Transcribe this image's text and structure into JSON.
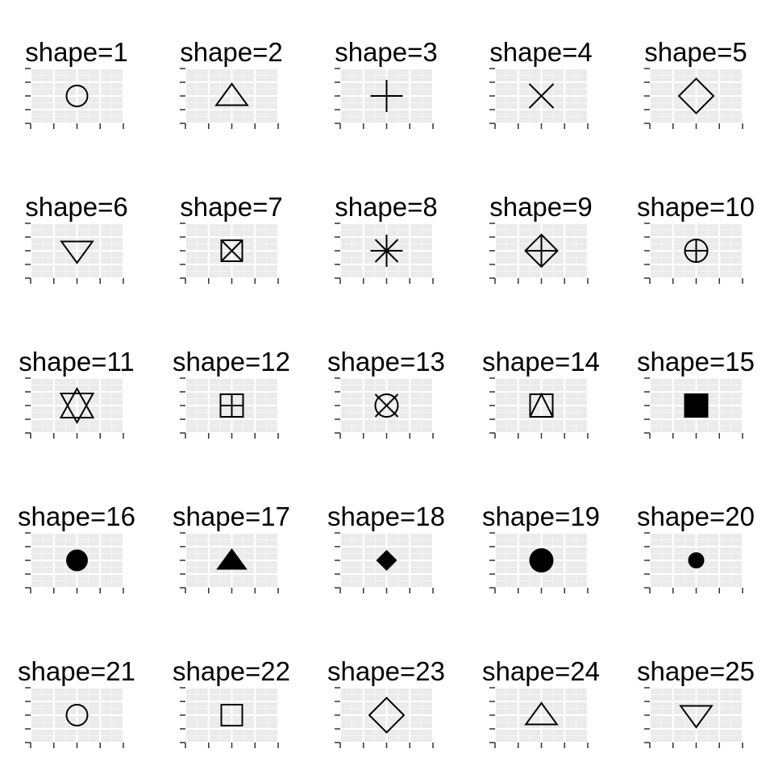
{
  "chart_data": {
    "type": "scatter",
    "layout": "facet-grid",
    "rows": 5,
    "cols": 5,
    "colors": {
      "background": "#ffffff",
      "panel": "#ebebeb",
      "grid_major": "#ffffff",
      "grid_minor": "#f5f5f5",
      "point": "#000000",
      "tick": "#333333"
    },
    "panels": [
      {
        "title": "shape=1",
        "shape": 1,
        "x": 0,
        "y": 0
      },
      {
        "title": "shape=2",
        "shape": 2,
        "x": 0,
        "y": 0
      },
      {
        "title": "shape=3",
        "shape": 3,
        "x": 0,
        "y": 0
      },
      {
        "title": "shape=4",
        "shape": 4,
        "x": 0,
        "y": 0
      },
      {
        "title": "shape=5",
        "shape": 5,
        "x": 0,
        "y": 0
      },
      {
        "title": "shape=6",
        "shape": 6,
        "x": 0,
        "y": 0
      },
      {
        "title": "shape=7",
        "shape": 7,
        "x": 0,
        "y": 0
      },
      {
        "title": "shape=8",
        "shape": 8,
        "x": 0,
        "y": 0
      },
      {
        "title": "shape=9",
        "shape": 9,
        "x": 0,
        "y": 0
      },
      {
        "title": "shape=10",
        "shape": 10,
        "x": 0,
        "y": 0
      },
      {
        "title": "shape=11",
        "shape": 11,
        "x": 0,
        "y": 0
      },
      {
        "title": "shape=12",
        "shape": 12,
        "x": 0,
        "y": 0
      },
      {
        "title": "shape=13",
        "shape": 13,
        "x": 0,
        "y": 0
      },
      {
        "title": "shape=14",
        "shape": 14,
        "x": 0,
        "y": 0
      },
      {
        "title": "shape=15",
        "shape": 15,
        "x": 0,
        "y": 0
      },
      {
        "title": "shape=16",
        "shape": 16,
        "x": 0,
        "y": 0
      },
      {
        "title": "shape=17",
        "shape": 17,
        "x": 0,
        "y": 0
      },
      {
        "title": "shape=18",
        "shape": 18,
        "x": 0,
        "y": 0
      },
      {
        "title": "shape=19",
        "shape": 19,
        "x": 0,
        "y": 0
      },
      {
        "title": "shape=20",
        "shape": 20,
        "x": 0,
        "y": 0
      },
      {
        "title": "shape=21",
        "shape": 21,
        "x": 0,
        "y": 0
      },
      {
        "title": "shape=22",
        "shape": 22,
        "x": 0,
        "y": 0
      },
      {
        "title": "shape=23",
        "shape": 23,
        "x": 0,
        "y": 0
      },
      {
        "title": "shape=24",
        "shape": 24,
        "x": 0,
        "y": 0
      },
      {
        "title": "shape=25",
        "shape": 25,
        "x": 0,
        "y": 0
      }
    ]
  }
}
